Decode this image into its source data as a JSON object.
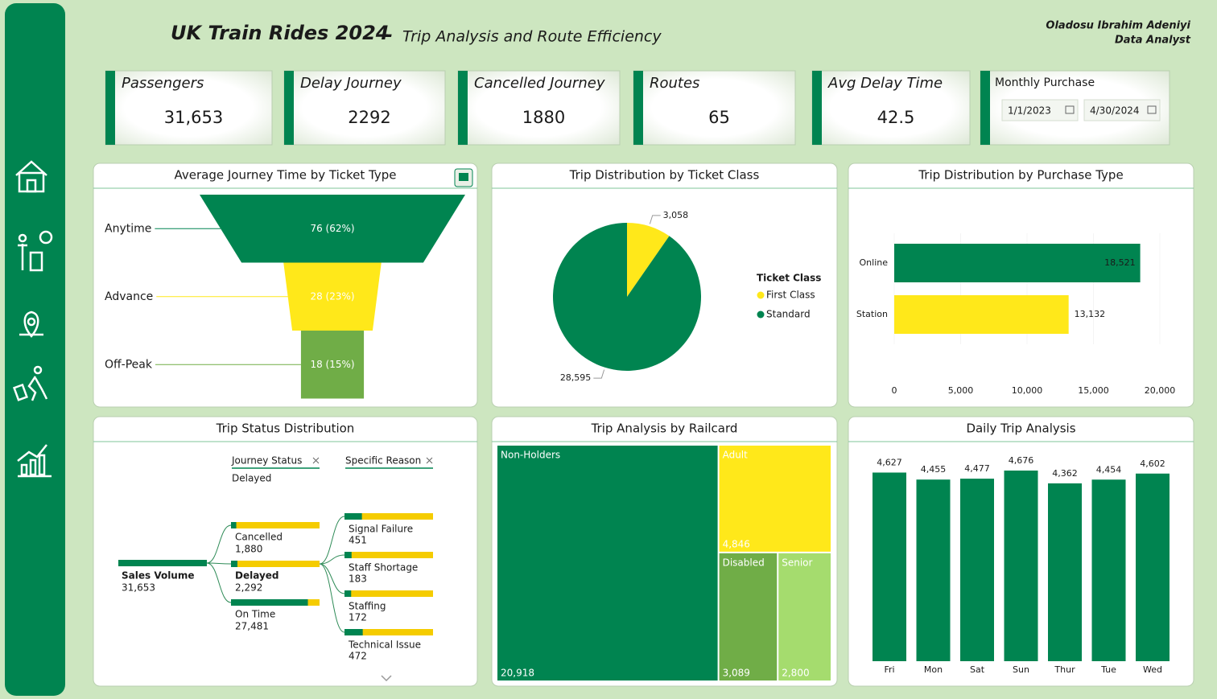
{
  "header": {
    "title": "UK Train Rides 2024",
    "separator": "-",
    "subtitle": "Trip Analysis and Route Efficiency",
    "author": "Oladosu Ibrahim Adeniyi",
    "role": "Data Analyst"
  },
  "kpis": [
    {
      "label": "Passengers",
      "value": "31,653"
    },
    {
      "label": "Delay Journey",
      "value": 2292
    },
    {
      "label": "Cancelled Journey",
      "value": 1880
    },
    {
      "label": "Routes",
      "value": 65
    },
    {
      "label": "Avg Delay Time",
      "value": 42.5
    }
  ],
  "date_slicer": {
    "label": "Monthly Purchase",
    "start": "1/1/2023",
    "end": "4/30/2024"
  },
  "chart_data": [
    {
      "type": "funnel",
      "title": "Average Journey Time by Ticket Type",
      "categories": [
        "Anytime",
        "Advance",
        "Off-Peak"
      ],
      "values": [
        76,
        28,
        18
      ],
      "value_labels": [
        "76 (62%)",
        "28 (23%)",
        "18 (15%)"
      ],
      "colors": [
        "#008450",
        "#ffe81a",
        "#70ad47"
      ]
    },
    {
      "type": "pie",
      "title": "Trip Distribution by Ticket Class",
      "legend_title": "Ticket Class",
      "categories": [
        "First Class",
        "Standard"
      ],
      "values": [
        3058,
        28595
      ],
      "value_labels": [
        "3,058",
        "28,595"
      ],
      "colors": [
        "#ffe81a",
        "#008450"
      ]
    },
    {
      "type": "bar",
      "orientation": "horizontal",
      "title": "Trip Distribution by Purchase Type",
      "categories": [
        "Online",
        "Station"
      ],
      "values": [
        18521,
        13132
      ],
      "value_labels": [
        "18,521",
        "13,132"
      ],
      "colors": [
        "#008450",
        "#ffe81a"
      ],
      "xlim": [
        0,
        20000
      ],
      "xticks": [
        0,
        {
          "value": 5000,
          "label": "5,000"
        },
        {
          "value": 10000,
          "label": "10,000"
        },
        {
          "value": 15000,
          "label": "15,000"
        },
        {
          "value": 20000,
          "label": "20,000"
        }
      ]
    },
    {
      "type": "decomposition_tree",
      "title": "Trip Status Distribution",
      "filters": [
        {
          "label": "Journey Status",
          "selected": "Delayed"
        },
        {
          "label": "Specific Reason"
        }
      ],
      "root_name": "Sales Volume",
      "root_value": 31653,
      "root_value_label": "31,653",
      "status": {
        "categories": [
          "Cancelled",
          "Delayed",
          "On Time"
        ],
        "values": [
          1880,
          2292,
          27481
        ],
        "value_labels": [
          "1,880",
          "2,292",
          "27,481"
        ]
      },
      "reasons": {
        "categories": [
          "Signal Failure",
          "Staff Shortage",
          "Staffing",
          "Technical Issue"
        ],
        "values": [
          451,
          183,
          172,
          472
        ],
        "value_labels": [
          "451",
          "183",
          "172",
          "472"
        ]
      },
      "colors": [
        "#008450",
        "#f5cc00"
      ]
    },
    {
      "type": "treemap",
      "title": "Trip Analysis by Railcard",
      "categories": [
        "Non-Holders",
        "Adult",
        "Disabled",
        "Senior"
      ],
      "values": [
        20918,
        4846,
        3089,
        2800
      ],
      "value_labels": [
        "20,918",
        "4,846",
        "3,089",
        "2,800"
      ],
      "colors": [
        "#008450",
        "#ffe81a",
        "#70ad47",
        "#a5dc6e"
      ]
    },
    {
      "type": "bar",
      "orientation": "vertical",
      "title": "Daily Trip Analysis",
      "categories": [
        "Fri",
        "Mon",
        "Sat",
        "Sun",
        "Thur",
        "Tue",
        "Wed"
      ],
      "values": [
        4627,
        4455,
        4477,
        4676,
        4362,
        4454,
        4602
      ],
      "value_labels": [
        "4,627",
        "4,455",
        "4,477",
        "4,676",
        "4,362",
        "4,454",
        "4,602"
      ],
      "color": "#008450"
    }
  ]
}
